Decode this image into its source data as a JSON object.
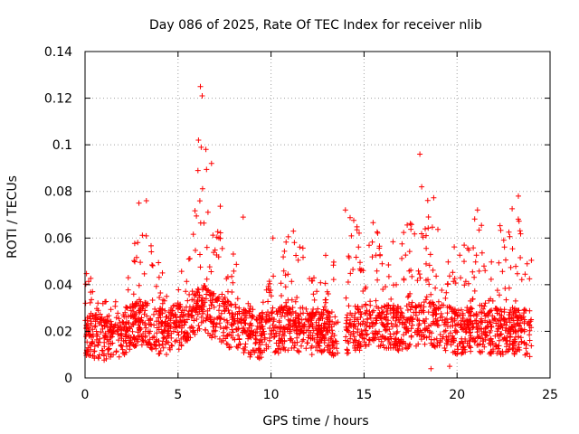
{
  "chart_data": {
    "type": "scatter",
    "title": "Day 086 of 2025, Rate Of TEC Index for receiver nlib",
    "xlabel": "GPS time / hours",
    "ylabel": "ROTI / TECUs",
    "xlim": [
      0,
      25
    ],
    "ylim": [
      0,
      0.14
    ],
    "xticks": [
      0,
      5,
      10,
      15,
      20,
      25
    ],
    "yticks": [
      0,
      0.02,
      0.04,
      0.06,
      0.08,
      0.1,
      0.12,
      0.14
    ],
    "xtick_labels": [
      "0",
      "5",
      "10",
      "15",
      "20",
      "25"
    ],
    "ytick_labels": [
      "0",
      "0.02",
      "0.04",
      "0.06",
      "0.08",
      "0.1",
      "0.12",
      "0.14"
    ],
    "grid": true,
    "marker": "+",
    "series_color": "#ff0000",
    "data_gap_hours": [
      13.6,
      14.0
    ],
    "envelope": {
      "x": [
        0,
        0.5,
        1,
        2,
        2.5,
        3,
        3.5,
        4,
        4.5,
        5,
        5.5,
        6,
        6.3,
        6.5,
        7,
        7.5,
        8,
        8.5,
        9,
        9.5,
        10,
        11,
        12,
        13,
        13.6,
        14,
        15,
        16,
        17,
        18,
        18.5,
        19,
        20,
        21,
        22,
        23,
        24
      ],
      "upper": [
        0.048,
        0.04,
        0.033,
        0.035,
        0.05,
        0.075,
        0.06,
        0.052,
        0.045,
        0.06,
        0.07,
        0.085,
        0.125,
        0.11,
        0.085,
        0.075,
        0.055,
        0.045,
        0.03,
        0.035,
        0.06,
        0.062,
        0.055,
        0.06,
        0.045,
        0.072,
        0.07,
        0.065,
        0.06,
        0.08,
        0.096,
        0.065,
        0.055,
        0.07,
        0.06,
        0.078,
        0.055
      ],
      "median": [
        0.018,
        0.018,
        0.017,
        0.018,
        0.022,
        0.024,
        0.022,
        0.02,
        0.02,
        0.022,
        0.025,
        0.028,
        0.03,
        0.029,
        0.026,
        0.024,
        0.022,
        0.02,
        0.018,
        0.018,
        0.02,
        0.021,
        0.02,
        0.02,
        0.018,
        0.02,
        0.022,
        0.022,
        0.021,
        0.023,
        0.024,
        0.022,
        0.02,
        0.021,
        0.02,
        0.02,
        0.019
      ]
    },
    "notable_points": [
      {
        "x": 6.2,
        "y": 0.125
      },
      {
        "x": 6.3,
        "y": 0.121
      },
      {
        "x": 6.1,
        "y": 0.102
      },
      {
        "x": 6.5,
        "y": 0.098
      },
      {
        "x": 18.0,
        "y": 0.096
      },
      {
        "x": 6.8,
        "y": 0.092
      },
      {
        "x": 18.1,
        "y": 0.082
      },
      {
        "x": 23.3,
        "y": 0.078
      },
      {
        "x": 3.3,
        "y": 0.076
      },
      {
        "x": 2.9,
        "y": 0.075
      },
      {
        "x": 21.1,
        "y": 0.072
      },
      {
        "x": 14.0,
        "y": 0.072
      },
      {
        "x": 8.5,
        "y": 0.069
      },
      {
        "x": 11.2,
        "y": 0.063
      },
      {
        "x": 10.1,
        "y": 0.06
      },
      {
        "x": 19.6,
        "y": 0.005
      },
      {
        "x": 18.6,
        "y": 0.004
      }
    ]
  }
}
